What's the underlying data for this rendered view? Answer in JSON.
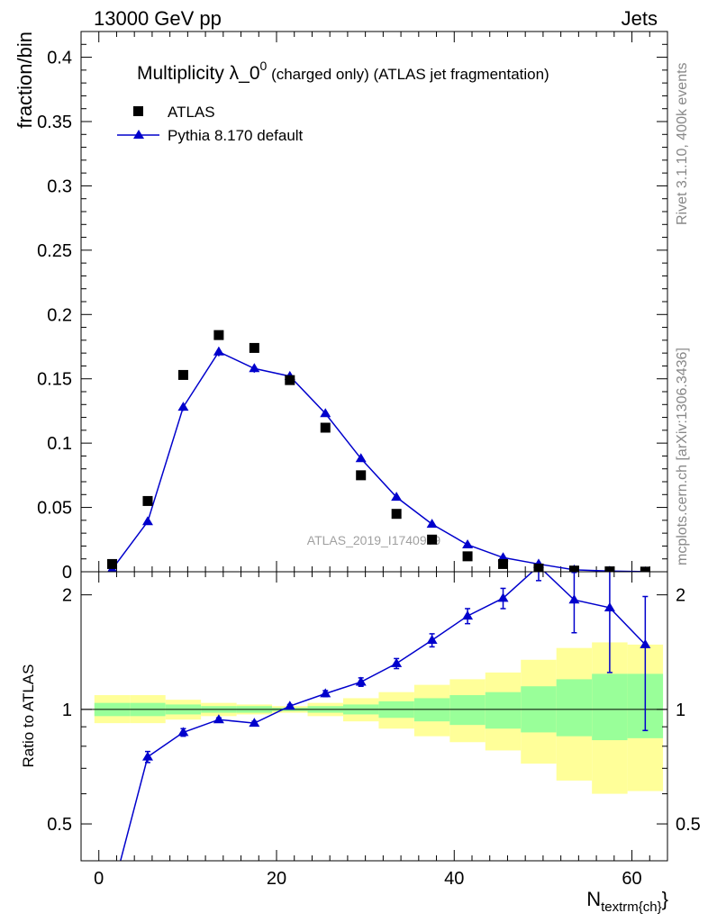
{
  "header": {
    "left": "13000 GeV pp",
    "right": "Jets"
  },
  "side_labels": {
    "rivet": "Rivet 3.1.10,  400k events",
    "mcplots": "mcplots.cern.ch [arXiv:1306.3436]"
  },
  "watermark": "ATLAS_2019_I1740909",
  "colors": {
    "mc": "#0000cc",
    "data": "#000000",
    "band_inner": "#99ff99",
    "band_outer": "#ffff99"
  },
  "chart_data": [
    {
      "type": "scatter",
      "title": "Multiplicity λ_0",
      "title_sup": "0",
      "title_suffix": " (charged only) (ATLAS jet fragmentation)",
      "ylabel": "fraction/bin",
      "xlim": [
        -2,
        64
      ],
      "ylim": [
        0,
        0.42
      ],
      "yticks": [
        0,
        0.05,
        0.1,
        0.15,
        0.2,
        0.25,
        0.3,
        0.35,
        0.4
      ],
      "ytick_labels": [
        "0",
        "0.05",
        "0.1",
        "0.15",
        "0.2",
        "0.25",
        "0.3",
        "0.35",
        "0.4"
      ],
      "legend_position": "top-left",
      "series": [
        {
          "name": "ATLAS",
          "marker": "square",
          "x": [
            1.5,
            5.5,
            9.5,
            13.5,
            17.5,
            21.5,
            25.5,
            29.5,
            33.5,
            37.5,
            41.5,
            45.5,
            49.5,
            53.5,
            57.5,
            61.5
          ],
          "y": [
            0.006,
            0.055,
            0.153,
            0.184,
            0.174,
            0.149,
            0.112,
            0.075,
            0.045,
            0.025,
            0.012,
            0.006,
            0.0025,
            0.0009,
            0.0003,
            0.0001
          ]
        },
        {
          "name": "Pythia 8.170 default",
          "marker": "triangle",
          "x": [
            1.5,
            5.5,
            9.5,
            13.5,
            17.5,
            21.5,
            25.5,
            29.5,
            33.5,
            37.5,
            41.5,
            45.5,
            49.5,
            53.5,
            57.5,
            61.5
          ],
          "y": [
            0.002,
            0.039,
            0.128,
            0.171,
            0.158,
            0.152,
            0.123,
            0.088,
            0.058,
            0.037,
            0.021,
            0.011,
            0.006,
            0.0015,
            0.0005,
            0.0001
          ],
          "err": [
            0.0004,
            0.0015,
            0.003,
            0.0035,
            0.0032,
            0.003,
            0.0025,
            0.002,
            0.0015,
            0.001,
            0.0008,
            0.0005,
            0.0004,
            0.0002,
            0.0001,
            0.0001
          ]
        }
      ]
    },
    {
      "type": "line",
      "ylabel": "Ratio to ATLAS",
      "xlabel_main": "N",
      "xlabel_sub": "textrm{ch}",
      "xlabel_tail": "}",
      "xlim": [
        -2,
        64
      ],
      "ylim": [
        0.4,
        2.3
      ],
      "ylog": true,
      "yticks": [
        0.5,
        1,
        2
      ],
      "ytick_labels": [
        "0.5",
        "1",
        "2"
      ],
      "xticks": [
        0,
        20,
        40,
        60
      ],
      "xtick_labels": [
        "0",
        "20",
        "40",
        "60"
      ],
      "bands": {
        "edges": [
          -0.5,
          3.5,
          7.5,
          11.5,
          15.5,
          19.5,
          23.5,
          27.5,
          31.5,
          35.5,
          39.5,
          43.5,
          47.5,
          51.5,
          55.5,
          59.5,
          63.5
        ],
        "inner_lo": [
          0.96,
          0.96,
          0.97,
          0.98,
          0.98,
          0.99,
          0.98,
          0.97,
          0.95,
          0.93,
          0.91,
          0.89,
          0.87,
          0.85,
          0.83,
          0.84
        ],
        "inner_hi": [
          1.04,
          1.04,
          1.03,
          1.02,
          1.02,
          1.01,
          1.02,
          1.03,
          1.05,
          1.07,
          1.09,
          1.11,
          1.15,
          1.2,
          1.24,
          1.24
        ],
        "outer_lo": [
          0.92,
          0.92,
          0.94,
          0.96,
          0.97,
          0.98,
          0.96,
          0.93,
          0.89,
          0.85,
          0.82,
          0.78,
          0.72,
          0.65,
          0.6,
          0.61
        ],
        "outer_hi": [
          1.09,
          1.09,
          1.06,
          1.04,
          1.03,
          1.02,
          1.04,
          1.07,
          1.11,
          1.16,
          1.2,
          1.25,
          1.35,
          1.45,
          1.5,
          1.48
        ]
      },
      "series": [
        {
          "name": "Pythia 8.170 default",
          "x": [
            1.5,
            5.5,
            9.5,
            13.5,
            17.5,
            21.5,
            25.5,
            29.5,
            33.5,
            37.5,
            41.5,
            45.5,
            49.5,
            53.5,
            57.5,
            61.5
          ],
          "y": [
            0.33,
            0.75,
            0.87,
            0.94,
            0.92,
            1.02,
            1.1,
            1.18,
            1.32,
            1.52,
            1.76,
            1.96,
            2.38,
            1.94,
            1.85,
            1.48
          ],
          "err_lo": [
            0.01,
            0.025,
            0.02,
            0.01,
            0.01,
            0.01,
            0.02,
            0.03,
            0.04,
            0.06,
            0.08,
            0.12,
            0.2,
            0.35,
            0.6,
            0.6
          ],
          "err_hi": [
            0.01,
            0.025,
            0.02,
            0.01,
            0.01,
            0.01,
            0.02,
            0.03,
            0.04,
            0.06,
            0.08,
            0.12,
            0.2,
            0.35,
            0.5,
            0.5
          ]
        }
      ]
    }
  ]
}
